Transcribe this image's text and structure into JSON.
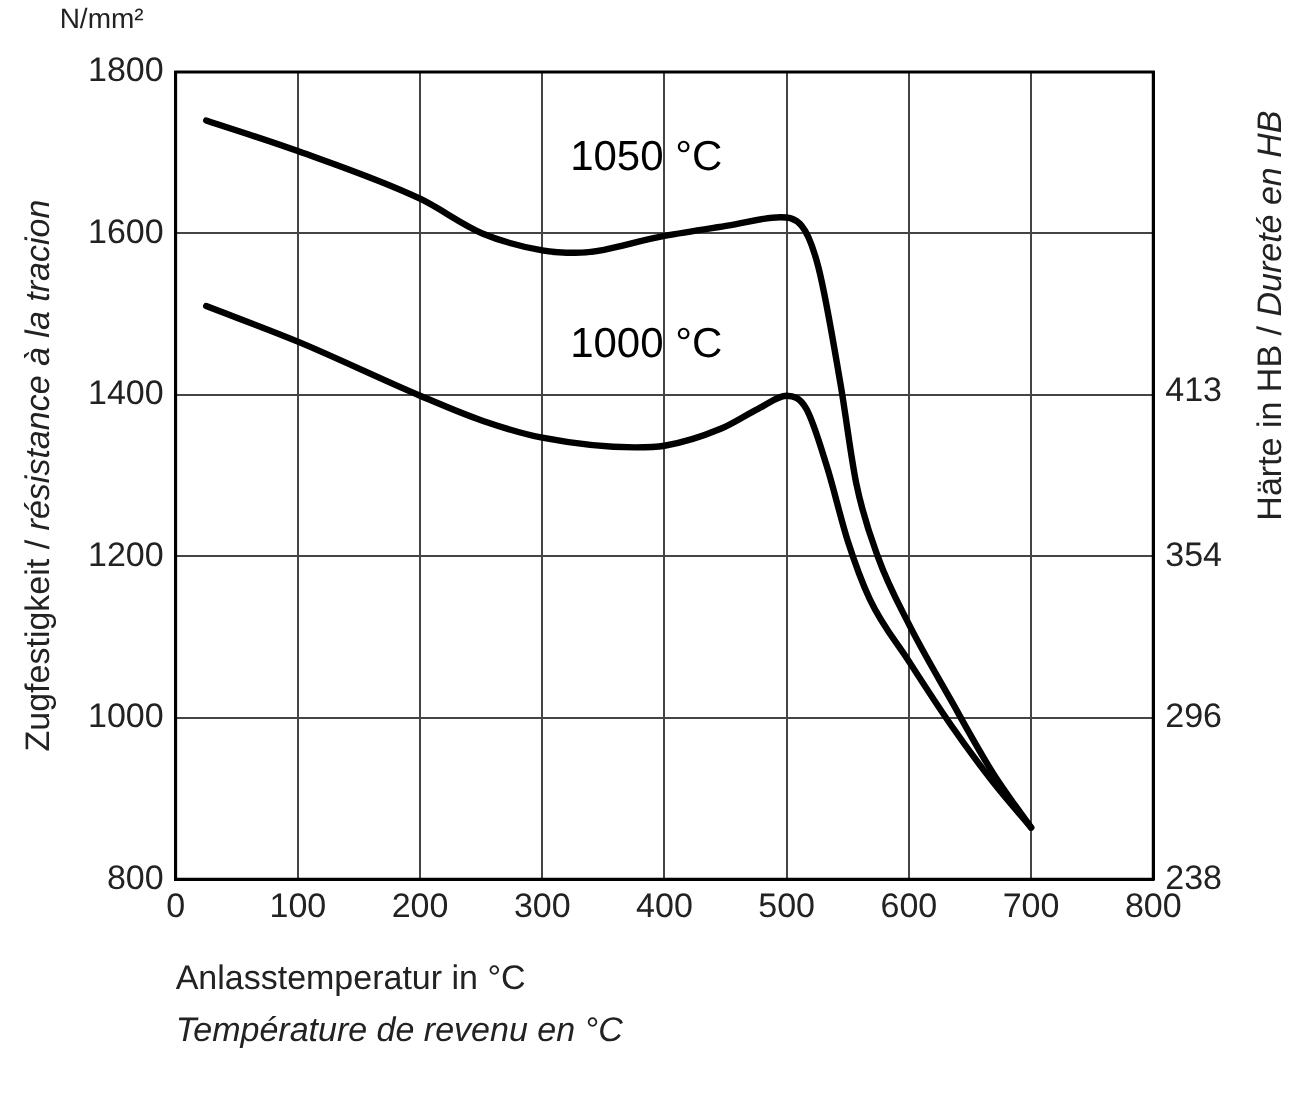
{
  "chart_data": {
    "type": "line",
    "xlabel": "Anlasstemperatur in °C\nTempérature de revenu en °C",
    "ylabel": "Zugfestigkeit / résistance à la tracion",
    "y2label": "Härte in HB / Dureté en HB",
    "annotations": [
      "N/mm²"
    ],
    "series": [
      {
        "name": "1050 °C",
        "color": "#000000",
        "x": [
          25,
          100,
          200,
          251,
          300,
          327,
          400,
          453,
          495,
          512,
          526,
          544,
          557,
          575,
          600,
          634,
          669,
          700
        ],
        "values": [
          1740,
          1702,
          1643,
          1600,
          1579,
          1576,
          1597,
          1610,
          1620,
          1610,
          1558,
          1414,
          1290,
          1198,
          1116,
          1023,
          931,
          864
        ]
      },
      {
        "name": "1000 °C",
        "color": "#000000",
        "x": [
          25,
          100,
          200,
          251,
          300,
          376,
          400,
          446,
          477,
          500,
          516,
          533,
          550,
          568,
          600,
          634,
          669,
          700
        ],
        "values": [
          1510,
          1466,
          1399,
          1368,
          1347,
          1335,
          1337,
          1358,
          1383,
          1399,
          1383,
          1311,
          1219,
          1147,
          1070,
          992,
          920,
          864
        ]
      }
    ],
    "xlim": [
      0,
      800
    ],
    "xticks": [
      0,
      100,
      200,
      300,
      400,
      500,
      600,
      700,
      800
    ],
    "ylim": [
      800,
      1800
    ],
    "yticks": [
      800,
      1000,
      1200,
      1400,
      1600,
      1800
    ],
    "y2lim": [
      238,
      528
    ],
    "y2ticks": [
      238,
      296,
      354,
      413
    ],
    "grid": true,
    "legend": false,
    "marker": "none",
    "line_style": "solid"
  }
}
